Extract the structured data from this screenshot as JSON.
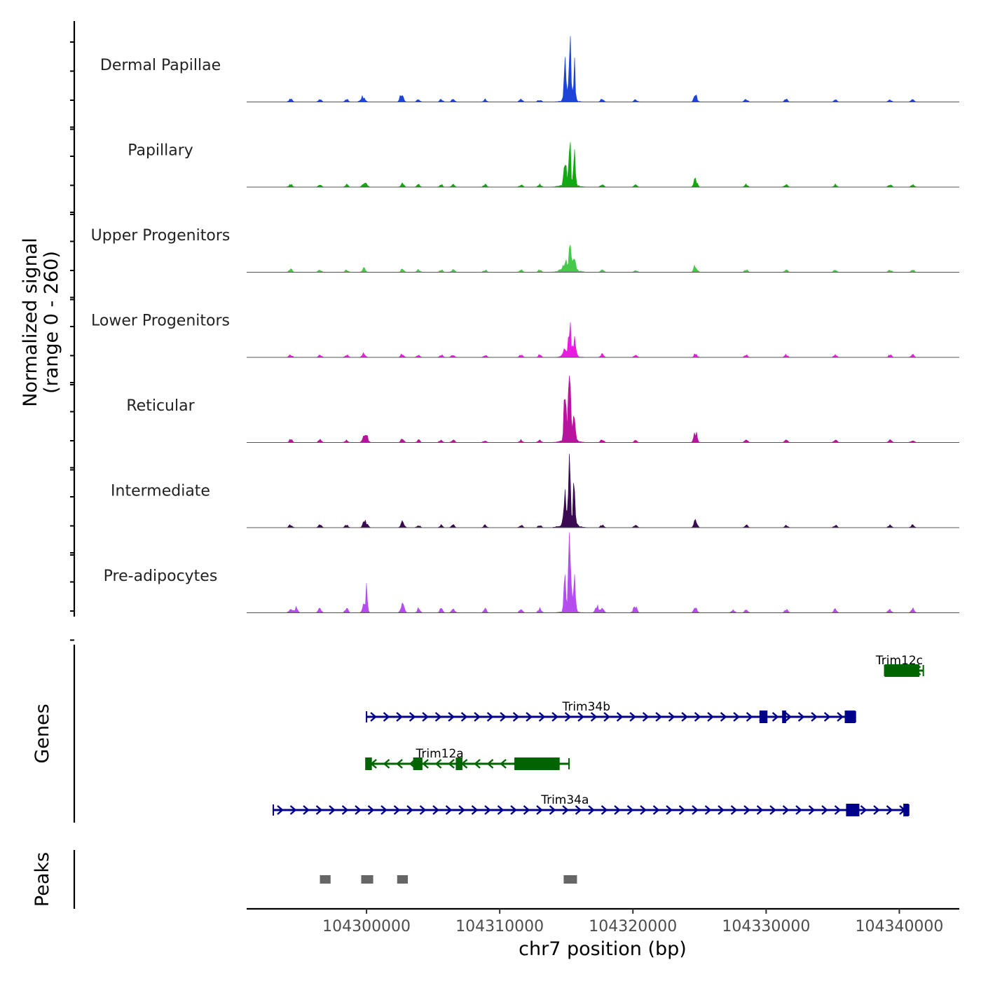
{
  "chart_data": {
    "type": "area",
    "title": "",
    "chromosome": "chr7",
    "ylabel_line1": "Normalized signal",
    "ylabel_line2": "(range 0 - 260)",
    "xlabel": "chr7 position (bp)",
    "xlim": [
      104291000,
      104344500
    ],
    "x_ticks": [
      "104300000",
      "104310000",
      "104320000",
      "104330000",
      "104340000"
    ],
    "x_tick_values": [
      104300000,
      104310000,
      104320000,
      104330000,
      104340000
    ],
    "signal_range": [
      0,
      260
    ],
    "track_colors": [
      "#1c44d6",
      "#12a812",
      "#46c84a",
      "#e81ce0",
      "#b8129f",
      "#3a0a52",
      "#b44cee"
    ],
    "background_peaks": [
      {
        "pos": 104294300,
        "h": 0.05
      },
      {
        "pos": 104296500,
        "h": 0.04
      },
      {
        "pos": 104298500,
        "h": 0.04
      },
      {
        "pos": 104299800,
        "h": 0.07
      },
      {
        "pos": 104302700,
        "h": 0.06
      },
      {
        "pos": 104303900,
        "h": 0.04
      },
      {
        "pos": 104305600,
        "h": 0.04
      },
      {
        "pos": 104306500,
        "h": 0.04
      },
      {
        "pos": 104308900,
        "h": 0.04
      },
      {
        "pos": 104311600,
        "h": 0.04
      },
      {
        "pos": 104313000,
        "h": 0.04
      },
      {
        "pos": 104317700,
        "h": 0.05
      },
      {
        "pos": 104320200,
        "h": 0.04
      },
      {
        "pos": 104324700,
        "h": 0.06
      },
      {
        "pos": 104328500,
        "h": 0.04
      },
      {
        "pos": 104331500,
        "h": 0.04
      },
      {
        "pos": 104335200,
        "h": 0.04
      },
      {
        "pos": 104339300,
        "h": 0.04
      },
      {
        "pos": 104341000,
        "h": 0.04
      }
    ],
    "series": [
      {
        "name": "Dermal Papillae",
        "peaks": [
          {
            "pos": 104314900,
            "h": 0.62
          },
          {
            "pos": 104315250,
            "h": 1.0
          },
          {
            "pos": 104315600,
            "h": 0.52
          },
          {
            "pos": 104299600,
            "h": 0.05
          },
          {
            "pos": 104302600,
            "h": 0.08
          },
          {
            "pos": 104324700,
            "h": 0.05
          }
        ]
      },
      {
        "name": "Papillary",
        "peaks": [
          {
            "pos": 104314900,
            "h": 0.4
          },
          {
            "pos": 104315250,
            "h": 0.72
          },
          {
            "pos": 104315600,
            "h": 0.42
          },
          {
            "pos": 104300000,
            "h": 0.05
          },
          {
            "pos": 104324700,
            "h": 0.08
          }
        ]
      },
      {
        "name": "Upper Progenitors",
        "peaks": [
          {
            "pos": 104314900,
            "h": 0.1
          },
          {
            "pos": 104315250,
            "h": 0.26
          },
          {
            "pos": 104315600,
            "h": 0.12
          },
          {
            "pos": 104324700,
            "h": 0.06
          }
        ]
      },
      {
        "name": "Lower Progenitors",
        "peaks": [
          {
            "pos": 104314900,
            "h": 0.18
          },
          {
            "pos": 104315250,
            "h": 0.48
          },
          {
            "pos": 104315600,
            "h": 0.24
          }
        ]
      },
      {
        "name": "Reticular",
        "peaks": [
          {
            "pos": 104314900,
            "h": 0.68
          },
          {
            "pos": 104315250,
            "h": 1.28
          },
          {
            "pos": 104315600,
            "h": 0.62
          },
          {
            "pos": 104300000,
            "h": 0.1
          },
          {
            "pos": 104324700,
            "h": 0.1
          }
        ]
      },
      {
        "name": "Intermediate",
        "peaks": [
          {
            "pos": 104314900,
            "h": 0.55
          },
          {
            "pos": 104315250,
            "h": 1.08
          },
          {
            "pos": 104315600,
            "h": 0.6
          },
          {
            "pos": 104300000,
            "h": 0.06
          },
          {
            "pos": 104302700,
            "h": 0.05
          },
          {
            "pos": 104324700,
            "h": 0.05
          }
        ]
      },
      {
        "name": "Pre-adipocytes",
        "peaks": [
          {
            "pos": 104314900,
            "h": 0.62
          },
          {
            "pos": 104315250,
            "h": 1.28
          },
          {
            "pos": 104315600,
            "h": 0.55
          },
          {
            "pos": 104300000,
            "h": 0.32
          },
          {
            "pos": 104302700,
            "h": 0.07
          },
          {
            "pos": 104294700,
            "h": 0.08
          },
          {
            "pos": 104317300,
            "h": 0.1
          },
          {
            "pos": 104320100,
            "h": 0.06
          },
          {
            "pos": 104327500,
            "h": 0.06
          }
        ]
      }
    ],
    "genes_label": "Genes",
    "genes": [
      {
        "name": "Trim12c",
        "strand": "-",
        "color": "#006400",
        "row": 0,
        "start": 104338900,
        "end": 104341800,
        "exons": [
          [
            104338900,
            104341500
          ]
        ],
        "label_pos": 104340000
      },
      {
        "name": "Trim34b",
        "strand": "+",
        "color": "#00008b",
        "row": 1,
        "start": 104300000,
        "end": 104336700,
        "exons": [
          [
            104329500,
            104330100
          ],
          [
            104331200,
            104331500
          ],
          [
            104335900,
            104336700
          ]
        ],
        "label_pos": 104316500
      },
      {
        "name": "Trim12a",
        "strand": "-",
        "color": "#006400",
        "row": 2,
        "start": 104300000,
        "end": 104315200,
        "exons": [
          [
            104299900,
            104300400
          ],
          [
            104303500,
            104304200
          ],
          [
            104306700,
            104307200
          ],
          [
            104311100,
            104314500
          ]
        ],
        "label_pos": 104305500
      },
      {
        "name": "Trim34a",
        "strand": "+",
        "color": "#00008b",
        "row": 3,
        "start": 104293000,
        "end": 104340700,
        "exons": [
          [
            104336000,
            104337000
          ],
          [
            104340300,
            104340700
          ]
        ],
        "label_pos": 104314900
      }
    ],
    "peaks_label": "Peaks",
    "peak_regions": [
      [
        104296500,
        104297300
      ],
      [
        104299600,
        104300500
      ],
      [
        104302300,
        104303100
      ],
      [
        104314800,
        104315800
      ]
    ]
  }
}
